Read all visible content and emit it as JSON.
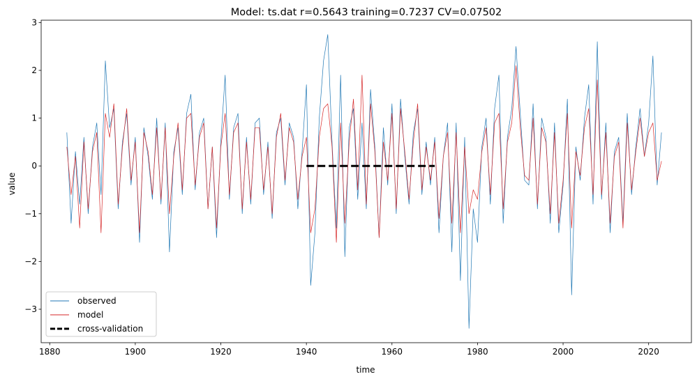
{
  "chart_data": {
    "type": "line",
    "title": "Model: ts.dat  r=0.5643  training=0.7237  CV=0.07502",
    "xlabel": "time",
    "ylabel": "value",
    "xlim": [
      1878,
      2030
    ],
    "ylim": [
      -3.7,
      3.05
    ],
    "xticks": [
      1880,
      1900,
      1920,
      1940,
      1960,
      1980,
      2000,
      2020
    ],
    "yticks": [
      -3,
      -2,
      -1,
      0,
      1,
      2,
      3
    ],
    "grid": false,
    "legend_position": "lower-left",
    "series": [
      {
        "name": "observed",
        "label": "observed",
        "color": "#1f77b4",
        "x": [
          1884,
          1885,
          1886,
          1887,
          1888,
          1889,
          1890,
          1891,
          1892,
          1893,
          1894,
          1895,
          1896,
          1897,
          1898,
          1899,
          1900,
          1901,
          1902,
          1903,
          1904,
          1905,
          1906,
          1907,
          1908,
          1909,
          1910,
          1911,
          1912,
          1913,
          1914,
          1915,
          1916,
          1917,
          1918,
          1919,
          1920,
          1921,
          1922,
          1923,
          1924,
          1925,
          1926,
          1927,
          1928,
          1929,
          1930,
          1931,
          1932,
          1933,
          1934,
          1935,
          1936,
          1937,
          1938,
          1939,
          1940,
          1941,
          1942,
          1943,
          1944,
          1945,
          1946,
          1947,
          1948,
          1949,
          1950,
          1951,
          1952,
          1953,
          1954,
          1955,
          1956,
          1957,
          1958,
          1959,
          1960,
          1961,
          1962,
          1963,
          1964,
          1965,
          1966,
          1967,
          1968,
          1969,
          1970,
          1971,
          1972,
          1973,
          1974,
          1975,
          1976,
          1977,
          1978,
          1979,
          1980,
          1981,
          1982,
          1983,
          1984,
          1985,
          1986,
          1987,
          1988,
          1989,
          1990,
          1991,
          1992,
          1993,
          1994,
          1995,
          1996,
          1997,
          1998,
          1999,
          2000,
          2001,
          2002,
          2003,
          2004,
          2005,
          2006,
          2007,
          2008,
          2009,
          2010,
          2011,
          2012,
          2013,
          2014,
          2015,
          2016,
          2017,
          2018,
          2019,
          2020,
          2021,
          2022,
          2023
        ],
        "values": [
          0.7,
          -1.2,
          0.3,
          -0.8,
          0.6,
          -1.0,
          0.4,
          0.9,
          -0.6,
          2.2,
          0.8,
          1.2,
          -0.9,
          0.5,
          1.1,
          -0.4,
          0.6,
          -1.6,
          0.8,
          0.2,
          -0.7,
          1.0,
          -0.8,
          0.9,
          -1.8,
          0.3,
          0.8,
          -0.6,
          1.1,
          1.5,
          -0.5,
          0.7,
          1.0,
          -0.9,
          0.4,
          -1.5,
          0.5,
          1.9,
          -0.7,
          0.8,
          1.1,
          -1.0,
          0.6,
          -0.8,
          0.9,
          1.0,
          -0.6,
          0.5,
          -1.1,
          0.7,
          1.0,
          -0.4,
          0.9,
          0.6,
          -0.9,
          0.3,
          1.7,
          -2.5,
          -1.4,
          1.0,
          2.2,
          2.75,
          0.5,
          -1.3,
          1.9,
          -1.9,
          0.8,
          1.2,
          -0.7,
          0.9,
          -0.9,
          1.6,
          0.4,
          -1.5,
          0.8,
          -0.4,
          1.3,
          -1.0,
          1.4,
          0.2,
          -0.8,
          0.7,
          1.2,
          -0.6,
          0.5,
          -0.4,
          0.6,
          -1.4,
          0.2,
          0.9,
          -1.8,
          0.9,
          -2.4,
          0.6,
          -3.4,
          -0.9,
          -1.6,
          0.4,
          1.0,
          -0.8,
          1.2,
          1.9,
          -1.2,
          0.6,
          1.2,
          2.5,
          1.1,
          -0.3,
          -0.4,
          1.3,
          -0.9,
          1.0,
          0.6,
          -1.2,
          0.9,
          -1.4,
          -0.4,
          1.4,
          -2.7,
          0.4,
          -0.3,
          1.0,
          1.7,
          -0.8,
          2.6,
          -0.7,
          0.9,
          -1.4,
          0.3,
          0.6,
          -1.2,
          1.1,
          -0.6,
          0.4,
          1.2,
          0.2,
          0.9,
          2.3,
          -0.4,
          0.7
        ],
        "width": 0.7
      },
      {
        "name": "model",
        "label": "model",
        "color": "#d62728",
        "x": [
          1884,
          1885,
          1886,
          1887,
          1888,
          1889,
          1890,
          1891,
          1892,
          1893,
          1894,
          1895,
          1896,
          1897,
          1898,
          1899,
          1900,
          1901,
          1902,
          1903,
          1904,
          1905,
          1906,
          1907,
          1908,
          1909,
          1910,
          1911,
          1912,
          1913,
          1914,
          1915,
          1916,
          1917,
          1918,
          1919,
          1920,
          1921,
          1922,
          1923,
          1924,
          1925,
          1926,
          1927,
          1928,
          1929,
          1930,
          1931,
          1932,
          1933,
          1934,
          1935,
          1936,
          1937,
          1938,
          1939,
          1940,
          1941,
          1942,
          1943,
          1944,
          1945,
          1946,
          1947,
          1948,
          1949,
          1950,
          1951,
          1952,
          1953,
          1954,
          1955,
          1956,
          1957,
          1958,
          1959,
          1960,
          1961,
          1962,
          1963,
          1964,
          1965,
          1966,
          1967,
          1968,
          1969,
          1970,
          1971,
          1972,
          1973,
          1974,
          1975,
          1976,
          1977,
          1978,
          1979,
          1980,
          1981,
          1982,
          1983,
          1984,
          1985,
          1986,
          1987,
          1988,
          1989,
          1990,
          1991,
          1992,
          1993,
          1994,
          1995,
          1996,
          1997,
          1998,
          1999,
          2000,
          2001,
          2002,
          2003,
          2004,
          2005,
          2006,
          2007,
          2008,
          2009,
          2010,
          2011,
          2012,
          2013,
          2014,
          2015,
          2016,
          2017,
          2018,
          2019,
          2020,
          2021,
          2022,
          2023
        ],
        "values": [
          0.4,
          -0.6,
          0.2,
          -1.3,
          0.5,
          -0.9,
          0.3,
          0.7,
          -1.4,
          1.1,
          0.6,
          1.3,
          -0.8,
          0.4,
          1.2,
          -0.3,
          0.5,
          -1.4,
          0.7,
          0.3,
          -0.6,
          0.8,
          -0.7,
          0.8,
          -1.0,
          0.2,
          0.9,
          -0.5,
          1.0,
          1.1,
          -0.4,
          0.6,
          0.9,
          -0.9,
          0.4,
          -1.3,
          0.4,
          1.1,
          -0.6,
          0.7,
          0.9,
          -0.9,
          0.5,
          -0.7,
          0.8,
          0.8,
          -0.5,
          0.4,
          -1.0,
          0.6,
          1.1,
          -0.3,
          0.8,
          0.5,
          -0.7,
          0.2,
          0.6,
          -1.4,
          -0.9,
          0.6,
          1.2,
          1.3,
          0.4,
          -1.6,
          0.9,
          -1.2,
          0.5,
          1.4,
          -0.5,
          1.9,
          -0.8,
          1.3,
          0.3,
          -1.5,
          0.5,
          -0.3,
          1.1,
          -0.9,
          1.2,
          0.3,
          -0.7,
          0.5,
          1.3,
          -0.5,
          0.4,
          -0.3,
          0.5,
          -1.1,
          0.2,
          0.7,
          -1.2,
          0.7,
          -1.4,
          0.4,
          -1.0,
          -0.5,
          -0.7,
          0.3,
          0.8,
          -0.6,
          0.9,
          1.1,
          -0.9,
          0.5,
          0.9,
          2.1,
          0.8,
          -0.2,
          -0.3,
          1.0,
          -0.8,
          0.8,
          0.5,
          -1.0,
          0.7,
          -1.2,
          -0.3,
          1.1,
          -1.3,
          0.3,
          -0.2,
          0.8,
          1.2,
          -0.6,
          1.8,
          -0.6,
          0.7,
          -1.2,
          0.2,
          0.5,
          -1.3,
          0.9,
          -0.5,
          0.3,
          1.0,
          0.2,
          0.7,
          0.9,
          -0.3,
          0.1
        ],
        "width": 0.7
      },
      {
        "name": "cross-validation",
        "label": "cross-validation",
        "color": "#000000",
        "x": [
          1940,
          1970
        ],
        "values": [
          0,
          0
        ],
        "style": "dashed",
        "width": 3
      }
    ]
  }
}
